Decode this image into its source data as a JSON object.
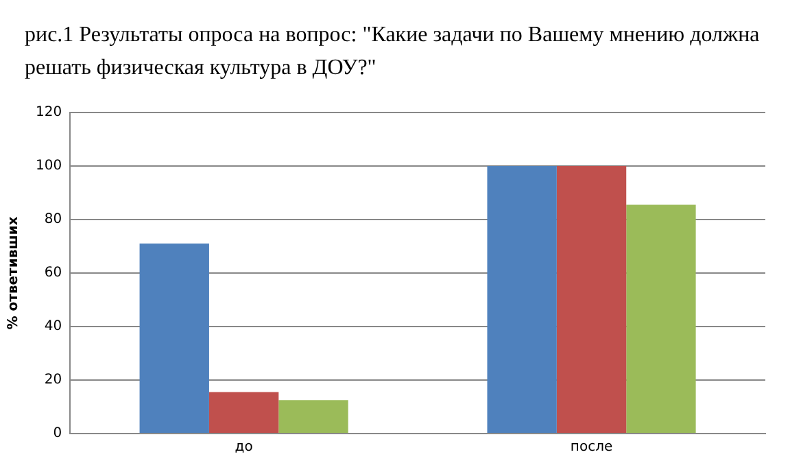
{
  "chart_data": {
    "type": "bar",
    "title": "рис.1 Результаты опроса на вопрос: \"Какие задачи по Вашему мнению должна решать физическая культура в ДОУ?\"",
    "ylabel": "% ответивших",
    "categories": [
      "до",
      "после"
    ],
    "series": [
      {
        "color": "#4f81bd",
        "values": [
          71,
          100
        ]
      },
      {
        "color": "#c0504d",
        "values": [
          15.5,
          100
        ]
      },
      {
        "color": "#9bbb59",
        "values": [
          12.5,
          85.5
        ]
      }
    ],
    "ylim": [
      0,
      120
    ],
    "yticks": [
      0,
      20,
      40,
      60,
      80,
      100,
      120
    ],
    "grid": "y"
  }
}
